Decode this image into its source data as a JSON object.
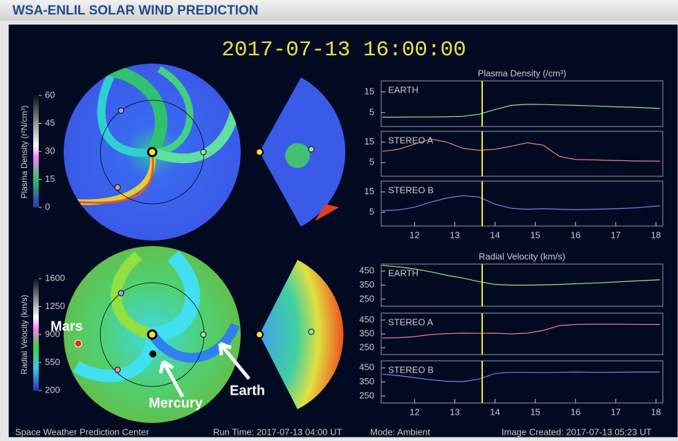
{
  "header": {
    "title": "WSA-ENLIL SOLAR WIND PREDICTION"
  },
  "timestamp": "2017-07-13 16:00:00",
  "colorbars": [
    {
      "label": "Plasma Density (r²N/cm³)",
      "lim": [
        0,
        60
      ],
      "ticks": [
        60,
        45,
        30,
        15,
        0
      ]
    },
    {
      "label": "Radial Velocity (km/s)",
      "lim": [
        200,
        1600
      ],
      "ticks": [
        1600,
        1250,
        900,
        550,
        200
      ]
    }
  ],
  "annotations": [
    "Mars",
    "Mercury",
    "Earth"
  ],
  "footer": [
    "Space Weather Prediction Center",
    "Run Time: 2017-07-13 04:00 UT",
    "Mode: Ambient",
    "Image Created: 2017-07-13 05:23 UT"
  ],
  "chart_data": [
    {
      "type": "line",
      "title": "Plasma Density (/cm³)",
      "label": "EARTH",
      "color": "#88f088",
      "x": [
        11.2,
        11.6,
        12,
        12.4,
        12.8,
        13.2,
        13.6,
        14,
        14.4,
        14.8,
        15.2,
        15.6,
        16,
        16.5,
        17,
        17.5,
        18.1
      ],
      "values": [
        2.8,
        2.8,
        2.9,
        2.9,
        3,
        3.2,
        4.2,
        6.5,
        8.5,
        9,
        8.9,
        8.7,
        8.5,
        8.2,
        7.8,
        7.5,
        7
      ],
      "xlim": [
        11.17,
        18.17
      ],
      "ylim": [
        -1.7,
        20.3
      ],
      "yticks": [
        15,
        5
      ],
      "now": 13.68
    },
    {
      "type": "line",
      "label": "STEREO A",
      "color": "#f08080",
      "x": [
        11.2,
        11.6,
        12,
        12.4,
        12.8,
        13.2,
        13.6,
        14,
        14.4,
        14.8,
        15.2,
        15.6,
        16,
        16.5,
        17,
        17.5,
        18.1
      ],
      "values": [
        10.5,
        11.5,
        14,
        16.5,
        15,
        12,
        11,
        11.5,
        13,
        14.7,
        13.5,
        8,
        6.5,
        6.3,
        6,
        5.8,
        5.7
      ],
      "xlim": [
        11.17,
        18.17
      ],
      "ylim": [
        -1.7,
        20.3
      ],
      "yticks": [
        15,
        5
      ],
      "now": 13.68
    },
    {
      "type": "line",
      "label": "STEREO B",
      "color": "#8080f0",
      "x": [
        11.2,
        11.6,
        12,
        12.4,
        12.8,
        13.2,
        13.6,
        14,
        14.4,
        14.8,
        15.2,
        15.6,
        16,
        16.5,
        17,
        17.5,
        18.1
      ],
      "values": [
        5.8,
        6.2,
        7.5,
        10,
        12,
        13.2,
        12.5,
        9,
        7,
        6.5,
        6.8,
        6.5,
        6.3,
        6.5,
        6.8,
        7.2,
        8.2
      ],
      "xlim": [
        11.17,
        18.17
      ],
      "ylim": [
        -1.7,
        20.3
      ],
      "yticks": [
        15,
        5
      ],
      "xticks": [
        12,
        13,
        14,
        15,
        16,
        17,
        18
      ],
      "now": 13.68
    },
    {
      "type": "line",
      "title": "Radial Velocity (km/s)",
      "label": "EARTH",
      "color": "#88f088",
      "x": [
        11.2,
        11.6,
        12,
        12.4,
        12.8,
        13.2,
        13.6,
        14,
        14.4,
        14.8,
        15.2,
        15.6,
        16,
        16.5,
        17,
        17.5,
        18.1
      ],
      "values": [
        490,
        480,
        465,
        445,
        420,
        400,
        375,
        355,
        350,
        350,
        352,
        355,
        360,
        365,
        372,
        380,
        388
      ],
      "xlim": [
        11.17,
        18.17
      ],
      "ylim": [
        200,
        500
      ],
      "yticks": [
        450,
        350,
        250
      ],
      "now": 13.68
    },
    {
      "type": "line",
      "label": "STEREO A",
      "color": "#f08080",
      "x": [
        11.2,
        11.6,
        12,
        12.4,
        12.8,
        13.2,
        13.6,
        14,
        14.4,
        14.8,
        15.2,
        15.6,
        16,
        16.5,
        17,
        17.5,
        18.1
      ],
      "values": [
        320,
        322,
        330,
        345,
        352,
        355,
        354,
        355,
        350,
        355,
        375,
        410,
        418,
        420,
        420,
        418,
        418
      ],
      "xlim": [
        11.17,
        18.17
      ],
      "ylim": [
        200,
        500
      ],
      "yticks": [
        450,
        350,
        250
      ],
      "now": 13.68
    },
    {
      "type": "line",
      "label": "STEREO B",
      "color": "#8080f0",
      "x": [
        11.2,
        11.6,
        12,
        12.4,
        12.8,
        13.2,
        13.6,
        14,
        14.4,
        14.8,
        15.2,
        15.6,
        16,
        16.5,
        17,
        17.5,
        18.1
      ],
      "values": [
        405,
        395,
        380,
        365,
        355,
        352,
        370,
        410,
        418,
        418,
        416,
        418,
        420,
        418,
        419,
        420,
        420
      ],
      "xlim": [
        11.17,
        18.17
      ],
      "ylim": [
        200,
        500
      ],
      "yticks": [
        450,
        350,
        250
      ],
      "xticks": [
        12,
        13,
        14,
        15,
        16,
        17,
        18
      ],
      "now": 13.68
    }
  ]
}
